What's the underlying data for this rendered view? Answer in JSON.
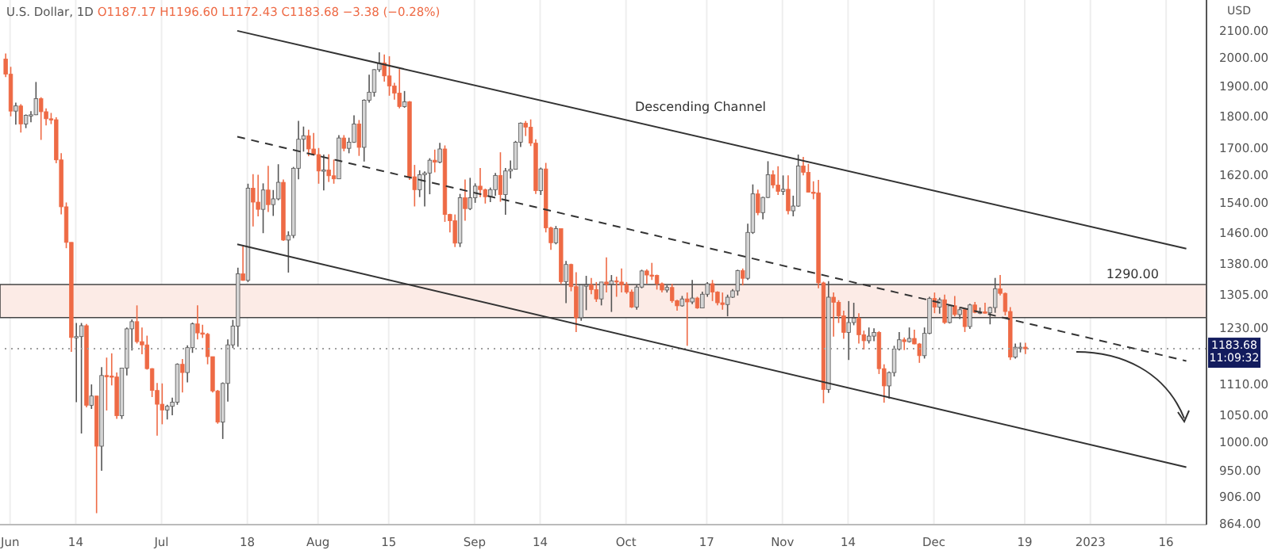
{
  "chart_data": {
    "type": "candlestick",
    "title": "U.S. Dollar, 1D",
    "subtitle": "O1187.17 H1196.60 L1172.43 C1183.68 −3.38 (−0.28%)",
    "colors": [
      "#ee6a45",
      "#ee6a45",
      "#d4d4d4",
      "#ee6a45",
      "#d4d4d4",
      "#d4d4d4",
      "#d4d4d4",
      "#ee6a45",
      "#ee6a45",
      "#ee6a45",
      "#ee6a45",
      "#ee6a45",
      "#ee6a45",
      "#ee6a45",
      "#d4d4d4",
      "#d4d4d4",
      "#ee6a45",
      "#d4d4d4",
      "#ee6a45",
      "#d4d4d4",
      "#ee6a45",
      "#ee6a45",
      "#ee6a45",
      "#d4d4d4",
      "#d4d4d4",
      "#d4d4d4",
      "#ee6a45",
      "#ee6a45",
      "#ee6a45",
      "#ee6a45",
      "#ee6a45",
      "#ee6a45",
      "#d4d4d4",
      "#d4d4d4",
      "#d4d4d4",
      "#ee6a45",
      "#d4d4d4",
      "#d4d4d4",
      "#ee6a45",
      "#ee6a45",
      "#ee6a45",
      "#ee6a45",
      "#ee6a45",
      "#d4d4d4",
      "#d4d4d4",
      "#d4d4d4",
      "#d4d4d4",
      "#ee6a45",
      "#d4d4d4",
      "#ee6a45",
      "#ee6a45",
      "#d4d4d4",
      "#ee6a45",
      "#d4d4d4",
      "#d4d4d4",
      "#ee6a45",
      "#d4d4d4",
      "#d4d4d4",
      "#d4d4d4",
      "#d4d4d4",
      "#ee6a45",
      "#ee6a45",
      "#ee6a45",
      "#d4d4d4",
      "#ee6a45",
      "#ee6a45",
      "#d4d4d4",
      "#ee6a45",
      "#d4d4d4",
      "#d4d4d4",
      "#ee6a45",
      "#d4d4d4",
      "#d4d4d4",
      "#d4d4d4",
      "#d4d4d4",
      "#ee6a45",
      "#ee6a45",
      "#ee6a45",
      "#ee6a45",
      "#d4d4d4",
      "#ee6a45",
      "#ee6a45",
      "#d4d4d4",
      "#d4d4d4",
      "#d4d4d4",
      "#ee6a45",
      "#d4d4d4",
      "#ee6a45",
      "#ee6a45",
      "#ee6a45",
      "#d4d4d4",
      "#ee6a45",
      "#d4d4d4",
      "#d4d4d4",
      "#ee6a45",
      "#ee6a45",
      "#d4d4d4",
      "#d4d4d4",
      "#ee6a45",
      "#d4d4d4",
      "#d4d4d4",
      "#d4d4d4",
      "#d4d4d4",
      "#ee6a45",
      "#ee6a45",
      "#ee6a45",
      "#d4d4d4",
      "#ee6a45",
      "#ee6a45",
      "#d4d4d4",
      "#ee6a45",
      "#d4d4d4",
      "#ee6a45",
      "#ee6a45",
      "#d4d4d4",
      "#d4d4d4",
      "#ee6a45",
      "#ee6a45",
      "#d4d4d4",
      "#ee6a45",
      "#d4d4d4",
      "#ee6a45",
      "#ee6a45",
      "#ee6a45",
      "#ee6a45",
      "#d4d4d4",
      "#d4d4d4",
      "#ee6a45",
      "#ee6a45",
      "#ee6a45",
      "#ee6a45",
      "#d4d4d4",
      "#ee6a45",
      "#ee6a45",
      "#d4d4d4",
      "#ee6a45",
      "#d4d4d4",
      "#ee6a45",
      "#d4d4d4",
      "#d4d4d4",
      "#ee6a45",
      "#ee6a45",
      "#ee6a45",
      "#d4d4d4",
      "#d4d4d4",
      "#d4d4d4",
      "#ee6a45",
      "#d4d4d4",
      "#d4d4d4",
      "#ee6a45",
      "#d4d4d4",
      "#d4d4d4",
      "#ee6a45",
      "#ee6a45",
      "#d4d4d4",
      "#ee6a45",
      "#d4d4d4",
      "#d4d4d4",
      "#ee6a45",
      "#ee6a45",
      "#ee6a45",
      "#ee6a45",
      "#ee6a45",
      "#d4d4d4",
      "#ee6a45",
      "#ee6a45",
      "#ee6a45",
      "#d4d4d4",
      "#d4d4d4",
      "#ee6a45",
      "#ee6a45",
      "#d4d4d4",
      "#d4d4d4",
      "#ee6a45",
      "#ee6a45",
      "#d4d4d4",
      "#d4d4d4",
      "#d4d4d4",
      "#ee6a45",
      "#d4d4d4",
      "#ee6a45",
      "#ee6a45",
      "#d4d4d4",
      "#d4d4d4",
      "#ee6a45",
      "#d4d4d4",
      "#ee6a45",
      "#d4d4d4",
      "#ee6a45",
      "#d4d4d4",
      "#ee6a45",
      "#d4d4d4",
      "#ee6a45",
      "#d4d4d4",
      "#ee6a45",
      "#d4d4d4",
      "#d4d4d4",
      "#ee6a45",
      "#ee6a45",
      "#ee6a45",
      "#d4d4d4",
      "#d4d4d4",
      "#ee6a45"
    ],
    "x": [
      "2022-05-31",
      "2022-06-01",
      "2022-06-02",
      "2022-06-03",
      "2022-06-04",
      "2022-06-05",
      "2022-06-06",
      "2022-06-07",
      "2022-06-08",
      "2022-06-09",
      "2022-06-10",
      "2022-06-11",
      "2022-06-12",
      "2022-06-13",
      "2022-06-14",
      "2022-06-15",
      "2022-06-16",
      "2022-06-17",
      "2022-06-18",
      "2022-06-19",
      "2022-06-20",
      "2022-06-21",
      "2022-06-22",
      "2022-06-23",
      "2022-06-24",
      "2022-06-25",
      "2022-06-26",
      "2022-06-27",
      "2022-06-28",
      "2022-06-29",
      "2022-06-30",
      "2022-07-01",
      "2022-07-02",
      "2022-07-03",
      "2022-07-04",
      "2022-07-05",
      "2022-07-06",
      "2022-07-07",
      "2022-07-08",
      "2022-07-09",
      "2022-07-10",
      "2022-07-11",
      "2022-07-12",
      "2022-07-13",
      "2022-07-14",
      "2022-07-15",
      "2022-07-16",
      "2022-07-17",
      "2022-07-18",
      "2022-07-19",
      "2022-07-20",
      "2022-07-21",
      "2022-07-22",
      "2022-07-23",
      "2022-07-24",
      "2022-07-25",
      "2022-07-26",
      "2022-07-27",
      "2022-07-28",
      "2022-07-29",
      "2022-07-30",
      "2022-07-31",
      "2022-08-01",
      "2022-08-02",
      "2022-08-03",
      "2022-08-04",
      "2022-08-05",
      "2022-08-06",
      "2022-08-07",
      "2022-08-08",
      "2022-08-09",
      "2022-08-10",
      "2022-08-11",
      "2022-08-12",
      "2022-08-13",
      "2022-08-14",
      "2022-08-15",
      "2022-08-16",
      "2022-08-17",
      "2022-08-18",
      "2022-08-19",
      "2022-08-20",
      "2022-08-21",
      "2022-08-22",
      "2022-08-23",
      "2022-08-24",
      "2022-08-25",
      "2022-08-26",
      "2022-08-27",
      "2022-08-28",
      "2022-08-29",
      "2022-08-30",
      "2022-08-31",
      "2022-09-01",
      "2022-09-02",
      "2022-09-03",
      "2022-09-04",
      "2022-09-05",
      "2022-09-06",
      "2022-09-07",
      "2022-09-08",
      "2022-09-09",
      "2022-09-10",
      "2022-09-11",
      "2022-09-12",
      "2022-09-13",
      "2022-09-14",
      "2022-09-15",
      "2022-09-16",
      "2022-09-17",
      "2022-09-18",
      "2022-09-19",
      "2022-09-20",
      "2022-09-21",
      "2022-09-22",
      "2022-09-23",
      "2022-09-24",
      "2022-09-25",
      "2022-09-26",
      "2022-09-27",
      "2022-09-28",
      "2022-09-29",
      "2022-09-30",
      "2022-10-01",
      "2022-10-02",
      "2022-10-03",
      "2022-10-04",
      "2022-10-05",
      "2022-10-06",
      "2022-10-07",
      "2022-10-08",
      "2022-10-09",
      "2022-10-10",
      "2022-10-11",
      "2022-10-12",
      "2022-10-13",
      "2022-10-14",
      "2022-10-15",
      "2022-10-16",
      "2022-10-17",
      "2022-10-18",
      "2022-10-19",
      "2022-10-20",
      "2022-10-21",
      "2022-10-22",
      "2022-10-23",
      "2022-10-24",
      "2022-10-25",
      "2022-10-26",
      "2022-10-27",
      "2022-10-28",
      "2022-10-29",
      "2022-10-30",
      "2022-10-31",
      "2022-11-01",
      "2022-11-02",
      "2022-11-03",
      "2022-11-04",
      "2022-11-05",
      "2022-11-06",
      "2022-11-07",
      "2022-11-08",
      "2022-11-09",
      "2022-11-10",
      "2022-11-11",
      "2022-11-12",
      "2022-11-13",
      "2022-11-14",
      "2022-11-15",
      "2022-11-16",
      "2022-11-17",
      "2022-11-18",
      "2022-11-19",
      "2022-11-20",
      "2022-11-21",
      "2022-11-22",
      "2022-11-23",
      "2022-11-24",
      "2022-11-25",
      "2022-11-26",
      "2022-11-27",
      "2022-11-28",
      "2022-11-29",
      "2022-11-30",
      "2022-12-01",
      "2022-12-02",
      "2022-12-03",
      "2022-12-04",
      "2022-12-05",
      "2022-12-06",
      "2022-12-07",
      "2022-12-08",
      "2022-12-09",
      "2022-12-10",
      "2022-12-11",
      "2022-12-12",
      "2022-12-13",
      "2022-12-14",
      "2022-12-15",
      "2022-12-16",
      "2022-12-17",
      "2022-12-18",
      "2022-12-19"
    ],
    "ohlc": [
      [
        1996,
        2016,
        1932,
        1942
      ],
      [
        1942,
        1968,
        1800,
        1817
      ],
      [
        1817,
        1845,
        1773,
        1834
      ],
      [
        1834,
        1840,
        1748,
        1775
      ],
      [
        1775,
        1806,
        1762,
        1803
      ],
      [
        1803,
        1817,
        1781,
        1805
      ],
      [
        1805,
        1915,
        1804,
        1858
      ],
      [
        1858,
        1863,
        1725,
        1815
      ],
      [
        1815,
        1826,
        1771,
        1792
      ],
      [
        1792,
        1811,
        1775,
        1789
      ],
      [
        1789,
        1797,
        1654,
        1664
      ],
      [
        1664,
        1684,
        1508,
        1529
      ],
      [
        1529,
        1541,
        1419,
        1434
      ],
      [
        1434,
        1434,
        1177,
        1208
      ],
      [
        1208,
        1240,
        1075,
        1210
      ],
      [
        1210,
        1240,
        1016,
        1234
      ],
      [
        1234,
        1238,
        1065,
        1069
      ],
      [
        1069,
        1110,
        1062,
        1087
      ],
      [
        1087,
        1087,
        880,
        993
      ],
      [
        993,
        1145,
        950,
        1128
      ],
      [
        1128,
        1165,
        1059,
        1127
      ],
      [
        1127,
        1174,
        1108,
        1125
      ],
      [
        1125,
        1134,
        1043,
        1049
      ],
      [
        1049,
        1143,
        1043,
        1143
      ],
      [
        1143,
        1230,
        1128,
        1227
      ],
      [
        1227,
        1248,
        1180,
        1243
      ],
      [
        1243,
        1280,
        1195,
        1199
      ],
      [
        1199,
        1230,
        1172,
        1192
      ],
      [
        1192,
        1212,
        1140,
        1142
      ],
      [
        1142,
        1143,
        1085,
        1098
      ],
      [
        1098,
        1113,
        1012,
        1071
      ],
      [
        1071,
        1112,
        1033,
        1060
      ],
      [
        1060,
        1070,
        1042,
        1067
      ],
      [
        1067,
        1084,
        1050,
        1075
      ],
      [
        1075,
        1153,
        1070,
        1151
      ],
      [
        1151,
        1162,
        1094,
        1134
      ],
      [
        1134,
        1191,
        1114,
        1186
      ],
      [
        1186,
        1241,
        1175,
        1238
      ],
      [
        1238,
        1280,
        1204,
        1218
      ],
      [
        1218,
        1236,
        1207,
        1215
      ],
      [
        1215,
        1218,
        1151,
        1167
      ],
      [
        1167,
        1167,
        1094,
        1097
      ],
      [
        1097,
        1099,
        1034,
        1037
      ],
      [
        1037,
        1114,
        1006,
        1112
      ],
      [
        1112,
        1204,
        1076,
        1192
      ],
      [
        1192,
        1247,
        1185,
        1233
      ],
      [
        1233,
        1370,
        1188,
        1355
      ],
      [
        1355,
        1424,
        1338,
        1339
      ],
      [
        1339,
        1594,
        1335,
        1581
      ],
      [
        1581,
        1622,
        1476,
        1542
      ],
      [
        1542,
        1620,
        1503,
        1522
      ],
      [
        1522,
        1595,
        1458,
        1576
      ],
      [
        1576,
        1646,
        1515,
        1535
      ],
      [
        1535,
        1576,
        1504,
        1551
      ],
      [
        1551,
        1651,
        1547,
        1598
      ],
      [
        1598,
        1606,
        1438,
        1440
      ],
      [
        1440,
        1463,
        1358,
        1452
      ],
      [
        1452,
        1643,
        1445,
        1639
      ],
      [
        1639,
        1785,
        1607,
        1727
      ],
      [
        1727,
        1767,
        1689,
        1738
      ],
      [
        1738,
        1757,
        1675,
        1697
      ],
      [
        1697,
        1747,
        1680,
        1680
      ],
      [
        1680,
        1700,
        1594,
        1631
      ],
      [
        1631,
        1680,
        1575,
        1634
      ],
      [
        1634,
        1681,
        1599,
        1617
      ],
      [
        1617,
        1665,
        1594,
        1608
      ],
      [
        1608,
        1740,
        1608,
        1731
      ],
      [
        1731,
        1740,
        1690,
        1699
      ],
      [
        1699,
        1732,
        1684,
        1718
      ],
      [
        1718,
        1803,
        1716,
        1775
      ],
      [
        1775,
        1788,
        1676,
        1702
      ],
      [
        1702,
        1856,
        1659,
        1853
      ],
      [
        1853,
        1940,
        1845,
        1880
      ],
      [
        1880,
        1960,
        1865,
        1958
      ],
      [
        1958,
        2020,
        1950,
        1982
      ],
      [
        1982,
        2012,
        1916,
        1936
      ],
      [
        1936,
        2006,
        1868,
        1901
      ],
      [
        1901,
        1912,
        1855,
        1877
      ],
      [
        1877,
        1960,
        1826,
        1832
      ],
      [
        1832,
        1884,
        1828,
        1848
      ],
      [
        1848,
        1850,
        1605,
        1614
      ],
      [
        1614,
        1649,
        1530,
        1577
      ],
      [
        1577,
        1633,
        1556,
        1620
      ],
      [
        1620,
        1630,
        1530,
        1625
      ],
      [
        1625,
        1669,
        1564,
        1663
      ],
      [
        1663,
        1695,
        1627,
        1657
      ],
      [
        1657,
        1716,
        1654,
        1697
      ],
      [
        1697,
        1708,
        1488,
        1508
      ],
      [
        1508,
        1510,
        1460,
        1491
      ],
      [
        1491,
        1508,
        1422,
        1432
      ],
      [
        1432,
        1565,
        1422,
        1554
      ],
      [
        1554,
        1606,
        1491,
        1524
      ],
      [
        1524,
        1611,
        1520,
        1554
      ],
      [
        1554,
        1595,
        1540,
        1587
      ],
      [
        1587,
        1640,
        1556,
        1577
      ],
      [
        1577,
        1580,
        1538,
        1557
      ],
      [
        1557,
        1583,
        1542,
        1577
      ],
      [
        1577,
        1625,
        1560,
        1618
      ],
      [
        1618,
        1687,
        1543,
        1563
      ],
      [
        1563,
        1640,
        1507,
        1631
      ],
      [
        1631,
        1662,
        1609,
        1636
      ],
      [
        1636,
        1722,
        1635,
        1718
      ],
      [
        1718,
        1780,
        1703,
        1778
      ],
      [
        1778,
        1785,
        1737,
        1765
      ],
      [
        1765,
        1790,
        1706,
        1715
      ],
      [
        1715,
        1727,
        1565,
        1574
      ],
      [
        1574,
        1641,
        1562,
        1637
      ],
      [
        1637,
        1655,
        1460,
        1472
      ],
      [
        1472,
        1475,
        1415,
        1433
      ],
      [
        1433,
        1477,
        1429,
        1470
      ],
      [
        1470,
        1470,
        1330,
        1336
      ],
      [
        1336,
        1387,
        1285,
        1378
      ],
      [
        1378,
        1380,
        1313,
        1324
      ],
      [
        1324,
        1359,
        1220,
        1252
      ],
      [
        1252,
        1329,
        1245,
        1328
      ],
      [
        1328,
        1350,
        1269,
        1328
      ],
      [
        1328,
        1345,
        1306,
        1317
      ],
      [
        1317,
        1335,
        1288,
        1295
      ],
      [
        1295,
        1335,
        1280,
        1335
      ],
      [
        1335,
        1396,
        1310,
        1330
      ],
      [
        1330,
        1352,
        1265,
        1338
      ],
      [
        1338,
        1348,
        1300,
        1335
      ],
      [
        1335,
        1368,
        1310,
        1328
      ],
      [
        1328,
        1335,
        1307,
        1311
      ],
      [
        1311,
        1317,
        1274,
        1276
      ],
      [
        1276,
        1327,
        1270,
        1323
      ],
      [
        1323,
        1365,
        1320,
        1362
      ],
      [
        1362,
        1366,
        1331,
        1352
      ],
      [
        1352,
        1382,
        1340,
        1351
      ],
      [
        1351,
        1353,
        1317,
        1331
      ],
      [
        1331,
        1334,
        1310,
        1316
      ],
      [
        1316,
        1327,
        1310,
        1322
      ],
      [
        1322,
        1331,
        1286,
        1291
      ],
      [
        1291,
        1293,
        1268,
        1279
      ],
      [
        1279,
        1302,
        1277,
        1295
      ],
      [
        1295,
        1310,
        1190,
        1288
      ],
      [
        1288,
        1340,
        1283,
        1297
      ],
      [
        1297,
        1300,
        1272,
        1274
      ],
      [
        1274,
        1312,
        1274,
        1306
      ],
      [
        1306,
        1335,
        1300,
        1331
      ],
      [
        1331,
        1340,
        1290,
        1311
      ],
      [
        1311,
        1313,
        1280,
        1286
      ],
      [
        1286,
        1310,
        1270,
        1282
      ],
      [
        1282,
        1305,
        1255,
        1299
      ],
      [
        1299,
        1318,
        1297,
        1314
      ],
      [
        1314,
        1365,
        1303,
        1363
      ],
      [
        1363,
        1368,
        1327,
        1344
      ],
      [
        1344,
        1483,
        1340,
        1460
      ],
      [
        1460,
        1592,
        1456,
        1565
      ],
      [
        1565,
        1577,
        1506,
        1513
      ],
      [
        1513,
        1557,
        1495,
        1555
      ],
      [
        1555,
        1660,
        1553,
        1620
      ],
      [
        1620,
        1633,
        1581,
        1590
      ],
      [
        1590,
        1645,
        1562,
        1572
      ],
      [
        1572,
        1618,
        1562,
        1578
      ],
      [
        1578,
        1618,
        1508,
        1518
      ],
      [
        1518,
        1560,
        1503,
        1531
      ],
      [
        1531,
        1680,
        1529,
        1646
      ],
      [
        1646,
        1673,
        1618,
        1627
      ],
      [
        1627,
        1652,
        1569,
        1570
      ],
      [
        1570,
        1601,
        1550,
        1568
      ],
      [
        1568,
        1605,
        1320,
        1333
      ],
      [
        1333,
        1336,
        1073,
        1100
      ],
      [
        1100,
        1337,
        1093,
        1299
      ],
      [
        1299,
        1310,
        1210,
        1287
      ],
      [
        1287,
        1292,
        1240,
        1256
      ],
      [
        1256,
        1268,
        1205,
        1219
      ],
      [
        1219,
        1290,
        1160,
        1241
      ],
      [
        1241,
        1286,
        1235,
        1251
      ],
      [
        1251,
        1262,
        1195,
        1214
      ],
      [
        1214,
        1223,
        1182,
        1201
      ],
      [
        1201,
        1230,
        1195,
        1211
      ],
      [
        1211,
        1228,
        1200,
        1219
      ],
      [
        1219,
        1222,
        1131,
        1142
      ],
      [
        1142,
        1151,
        1074,
        1107
      ],
      [
        1107,
        1136,
        1082,
        1134
      ],
      [
        1134,
        1190,
        1126,
        1183
      ],
      [
        1183,
        1220,
        1180,
        1203
      ],
      [
        1203,
        1208,
        1181,
        1199
      ],
      [
        1199,
        1230,
        1197,
        1206
      ],
      [
        1206,
        1225,
        1193,
        1194
      ],
      [
        1194,
        1196,
        1154,
        1169
      ],
      [
        1169,
        1230,
        1163,
        1217
      ],
      [
        1217,
        1300,
        1215,
        1296
      ],
      [
        1296,
        1310,
        1262,
        1276
      ],
      [
        1276,
        1298,
        1261,
        1293
      ],
      [
        1293,
        1305,
        1238,
        1241
      ],
      [
        1241,
        1282,
        1239,
        1279
      ],
      [
        1279,
        1302,
        1255,
        1259
      ],
      [
        1259,
        1277,
        1249,
        1270
      ],
      [
        1270,
        1272,
        1220,
        1232
      ],
      [
        1232,
        1284,
        1227,
        1281
      ],
      [
        1281,
        1288,
        1262,
        1264
      ],
      [
        1264,
        1275,
        1260,
        1265
      ],
      [
        1265,
        1286,
        1261,
        1263
      ],
      [
        1263,
        1277,
        1237,
        1275
      ],
      [
        1275,
        1345,
        1263,
        1319
      ],
      [
        1319,
        1352,
        1303,
        1308
      ],
      [
        1308,
        1310,
        1257,
        1266
      ],
      [
        1266,
        1276,
        1160,
        1166
      ],
      [
        1166,
        1195,
        1163,
        1187
      ],
      [
        1187,
        1197,
        1176,
        1187
      ],
      [
        1187.17,
        1196.6,
        1172.43,
        1183.68
      ]
    ],
    "series": [
      {
        "type": "line",
        "color": "#333333",
        "x": [
          "2022-07-16",
          "2023-01-20"
        ],
        "values": [
          2100,
          1418
        ]
      },
      {
        "type": "line",
        "color": "#333333",
        "line_style": "dashed",
        "x": [
          "2022-07-16",
          "2023-01-20"
        ],
        "values": [
          1735,
          1158
        ]
      },
      {
        "type": "line",
        "color": "#333333",
        "x": [
          "2022-07-16",
          "2023-01-20"
        ],
        "values": [
          1429,
          956
        ]
      }
    ],
    "xlim": [
      "2022-05-30",
      "2023-01-24"
    ],
    "xticks": [
      {
        "value": "2022-06-01",
        "label": "Jun"
      },
      {
        "value": "2022-06-14",
        "label": "14"
      },
      {
        "value": "2022-07-01",
        "label": "Jul"
      },
      {
        "value": "2022-07-18",
        "label": "18"
      },
      {
        "value": "2022-08-01",
        "label": "Aug"
      },
      {
        "value": "2022-08-15",
        "label": "15"
      },
      {
        "value": "2022-09-01",
        "label": "Sep"
      },
      {
        "value": "2022-09-14",
        "label": "14"
      },
      {
        "value": "2022-10-01",
        "label": "Oct"
      },
      {
        "value": "2022-10-17",
        "label": "17"
      },
      {
        "value": "2022-11-01",
        "label": "Nov"
      },
      {
        "value": "2022-11-14",
        "label": "14"
      },
      {
        "value": "2022-12-01",
        "label": "Dec"
      },
      {
        "value": "2022-12-19",
        "label": "19"
      },
      {
        "value": "2023-01-01",
        "label": "2023"
      },
      {
        "value": "2023-01-16",
        "label": "16"
      }
    ],
    "ylabel": "USD",
    "log": true,
    "ylim": [
      862,
      2220
    ],
    "yticks": [
      {
        "value": 2100,
        "label": "2100.00"
      },
      {
        "value": 2000,
        "label": "2000.00"
      },
      {
        "value": 1900,
        "label": "1900.00"
      },
      {
        "value": 1800,
        "label": "1800.00"
      },
      {
        "value": 1700,
        "label": "1700.00"
      },
      {
        "value": 1620,
        "label": "1620.00"
      },
      {
        "value": 1540,
        "label": "1540.00"
      },
      {
        "value": 1460,
        "label": "1460.00"
      },
      {
        "value": 1380,
        "label": "1380.00"
      },
      {
        "value": 1305,
        "label": "1305.00"
      },
      {
        "value": 1230,
        "label": "1230.00"
      },
      {
        "value": 1110,
        "label": "1110.00"
      },
      {
        "value": 1050,
        "label": "1050.00"
      },
      {
        "value": 1000,
        "label": "1000.00"
      },
      {
        "value": 950,
        "label": "950.00"
      },
      {
        "value": 906,
        "label": "906.00"
      },
      {
        "value": 864,
        "label": "864.00"
      }
    ],
    "grid": "x",
    "ref_lines": [
      {
        "axis": "y",
        "value": 1183.68,
        "label": "1183.68 11:09:32",
        "color": "#9e9e9e",
        "line_style": "dotted"
      }
    ],
    "bands": [
      {
        "axis": "y",
        "from": 1252,
        "to": 1329,
        "label": "1290.00",
        "color": "#fcebe6"
      }
    ],
    "annotations": [
      "Descending Channel"
    ]
  }
}
